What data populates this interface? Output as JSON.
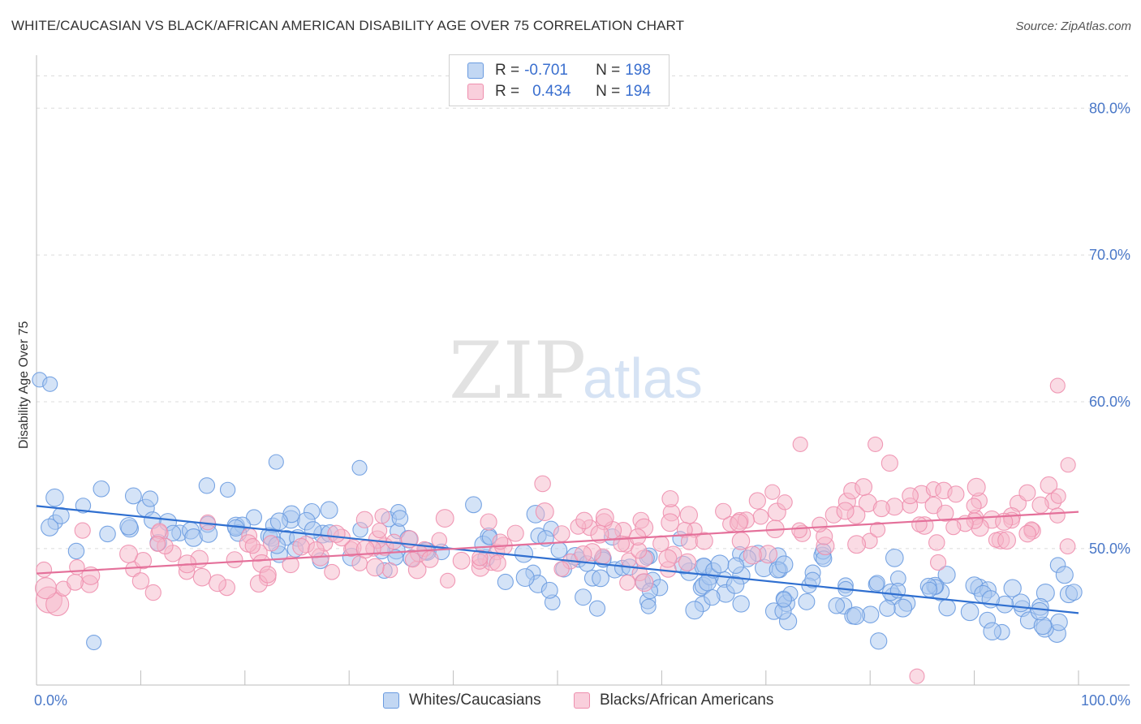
{
  "title": "WHITE/CAUCASIAN VS BLACK/AFRICAN AMERICAN DISABILITY AGE OVER 75 CORRELATION CHART",
  "source": "Source: ZipAtlas.com",
  "watermark": {
    "zip": "ZIP",
    "atlas": "atlas"
  },
  "legend_stats": [
    {
      "r_label": "R =",
      "r_value": "-0.701",
      "n_label": "N =",
      "n_value": "198",
      "color": "#a9c7f0"
    },
    {
      "r_label": "R =",
      "r_value": "0.434",
      "n_label": "N =",
      "n_value": "194",
      "color": "#f5b8ca"
    }
  ],
  "chart_data": {
    "type": "scatter",
    "ylabel": "Disability Age Over 75",
    "xlim": [
      0,
      100
    ],
    "ylim": [
      40.7,
      83.5
    ],
    "x_tick_labels": [
      {
        "value": 0,
        "label": "0.0%"
      },
      {
        "value": 100,
        "label": "100.0%"
      }
    ],
    "y_tick_labels": [
      {
        "value": 50,
        "label": "50.0%"
      },
      {
        "value": 60,
        "label": "60.0%"
      },
      {
        "value": 70,
        "label": "70.0%"
      },
      {
        "value": 80,
        "label": "80.0%"
      }
    ],
    "grid": true,
    "legend_position": "bottom",
    "series": [
      {
        "name": "Whites/Caucasians",
        "color": "#6a9be0",
        "fill": "#a9c7f0",
        "trend": {
          "x": [
            0,
            100
          ],
          "y": [
            52.9,
            45.6
          ],
          "color": "#2f6fd0"
        },
        "n": 198,
        "r": -0.701
      },
      {
        "name": "Blacks/African Americans",
        "color": "#ee8fae",
        "fill": "#f5b8ca",
        "trend": {
          "x": [
            0,
            100
          ],
          "y": [
            48.3,
            52.5
          ],
          "color": "#e4709a"
        },
        "n": 194,
        "r": 0.434
      }
    ]
  }
}
